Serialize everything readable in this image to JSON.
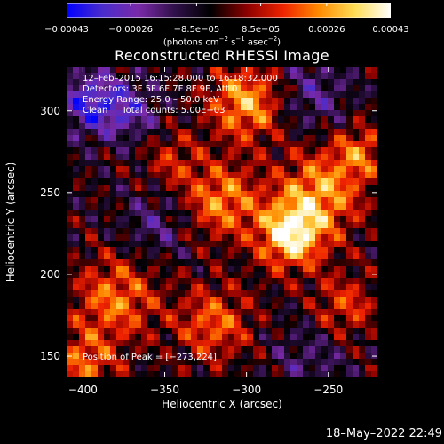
{
  "chart_data": {
    "type": "heatmap",
    "title": "Reconstructed RHESSI Image",
    "xlabel": "Heliocentric X (arcsec)",
    "ylabel": "Heliocentric Y (arcsec)",
    "xlim": [
      -410,
      -220
    ],
    "ylim": [
      137,
      327
    ],
    "x_ticks": [
      -400,
      -350,
      -300,
      -250
    ],
    "y_ticks": [
      150,
      200,
      250,
      300
    ],
    "x_tick_labels": [
      "−400",
      "−350",
      "−300",
      "−250"
    ],
    "y_tick_labels": [
      "150",
      "200",
      "250",
      "300"
    ],
    "colorbar": {
      "range": [
        -0.00043,
        0.00043
      ],
      "ticks": [
        -0.00043,
        -0.00026,
        -8.5e-05,
        8.5e-05,
        0.00026,
        0.00043
      ],
      "tick_labels": [
        "−0.00043",
        "−0.00026",
        "−8.5e−05",
        "8.5e−05",
        "0.00026",
        "0.00043"
      ],
      "units_parts": [
        "(photons cm",
        "−2",
        " s",
        "−1",
        " asec",
        "−2",
        ")"
      ]
    },
    "annotations": {
      "time": "12–Feb–2015 16:15:28.000 to 16:18:32.000",
      "detectors": "Detectors: 3F 5F 6F 7F 8F 9F, Att 0",
      "energy": "Energy Range: 25.0 – 50.0 keV",
      "clean": "Clean     Total counts: 5.00E+03",
      "peak": "Position of Peak = [−273,224]"
    },
    "peak": [
      -273,
      224
    ],
    "sources": [
      {
        "x": -273,
        "y": 224,
        "amp": 1.0,
        "sigma": 14
      },
      {
        "x": -255,
        "y": 250,
        "amp": 0.7,
        "sigma": 18
      },
      {
        "x": -300,
        "y": 305,
        "amp": 0.75,
        "sigma": 16
      },
      {
        "x": -315,
        "y": 245,
        "amp": 0.65,
        "sigma": 16
      },
      {
        "x": -380,
        "y": 185,
        "amp": 0.6,
        "sigma": 18
      },
      {
        "x": -400,
        "y": 145,
        "amp": 0.55,
        "sigma": 14
      },
      {
        "x": -320,
        "y": 170,
        "amp": 0.55,
        "sigma": 16
      },
      {
        "x": -240,
        "y": 180,
        "amp": 0.45,
        "sigma": 14
      },
      {
        "x": -345,
        "y": 270,
        "amp": 0.35,
        "sigma": 12
      },
      {
        "x": -230,
        "y": 275,
        "amp": 0.5,
        "sigma": 12
      },
      {
        "x": -395,
        "y": 305,
        "amp": -0.65,
        "sigma": 14
      },
      {
        "x": -370,
        "y": 300,
        "amp": -0.4,
        "sigma": 12
      },
      {
        "x": -260,
        "y": 310,
        "amp": -0.35,
        "sigma": 16
      },
      {
        "x": -355,
        "y": 230,
        "amp": -0.3,
        "sigma": 14
      },
      {
        "x": -260,
        "y": 150,
        "amp": -0.25,
        "sigma": 16
      }
    ],
    "colormap": [
      "#0000ff",
      "#4a2ccc",
      "#7a2aa8",
      "#30104a",
      "#000000",
      "#8b0000",
      "#ee2200",
      "#ff8a00",
      "#ffdd55",
      "#ffffff"
    ]
  },
  "footer": {
    "timestamp": "18–May–2022 22:49"
  }
}
